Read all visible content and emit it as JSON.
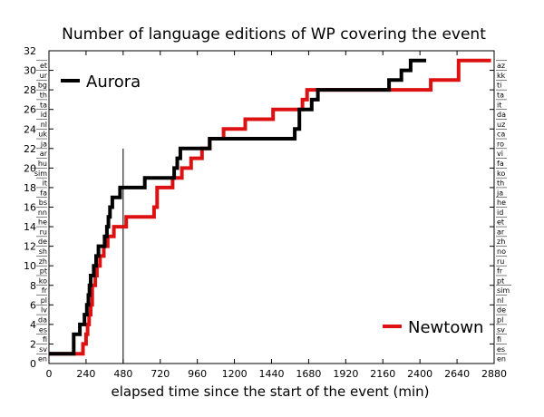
{
  "chart_data": {
    "type": "line",
    "title": "Number of language editions of WP covering the event",
    "xlabel": "elapsed time since the start of the event (min)",
    "ylabel": "",
    "xlim": [
      0,
      2880
    ],
    "ylim": [
      0,
      32
    ],
    "x_ticks": [
      "0",
      "240",
      "480",
      "720",
      "960",
      "1200",
      "1440",
      "1680",
      "1920",
      "2160",
      "2400",
      "2640",
      "2880"
    ],
    "y_ticks": [
      "0",
      "2",
      "4",
      "6",
      "8",
      "10",
      "12",
      "14",
      "16",
      "18",
      "20",
      "22",
      "24",
      "26",
      "28",
      "30",
      "32"
    ],
    "grid": false,
    "legend_placement": "top-left and bottom-right",
    "vertical_marker_x": 480,
    "vertical_marker_ymax": 22,
    "series": [
      {
        "name": "Aurora",
        "color": "#000000",
        "step_points": [
          [
            0,
            1
          ],
          [
            160,
            1
          ],
          [
            160,
            3
          ],
          [
            200,
            3
          ],
          [
            200,
            4
          ],
          [
            230,
            4
          ],
          [
            230,
            5
          ],
          [
            245,
            5
          ],
          [
            245,
            6
          ],
          [
            255,
            6
          ],
          [
            255,
            7
          ],
          [
            262,
            7
          ],
          [
            262,
            8
          ],
          [
            270,
            8
          ],
          [
            270,
            9
          ],
          [
            290,
            9
          ],
          [
            290,
            10
          ],
          [
            305,
            10
          ],
          [
            305,
            11
          ],
          [
            320,
            11
          ],
          [
            320,
            12
          ],
          [
            360,
            12
          ],
          [
            360,
            13
          ],
          [
            375,
            13
          ],
          [
            375,
            14
          ],
          [
            385,
            14
          ],
          [
            385,
            15
          ],
          [
            395,
            15
          ],
          [
            395,
            16
          ],
          [
            410,
            16
          ],
          [
            410,
            17
          ],
          [
            460,
            17
          ],
          [
            460,
            18
          ],
          [
            480,
            18
          ],
          [
            480,
            18
          ],
          [
            620,
            18
          ],
          [
            620,
            19
          ],
          [
            810,
            19
          ],
          [
            810,
            20
          ],
          [
            830,
            20
          ],
          [
            830,
            21
          ],
          [
            850,
            21
          ],
          [
            850,
            22
          ],
          [
            1040,
            22
          ],
          [
            1040,
            23
          ],
          [
            1590,
            23
          ],
          [
            1590,
            24
          ],
          [
            1620,
            24
          ],
          [
            1620,
            26
          ],
          [
            1700,
            26
          ],
          [
            1700,
            27
          ],
          [
            1740,
            27
          ],
          [
            1740,
            28
          ],
          [
            1750,
            28
          ],
          [
            2200,
            28
          ],
          [
            2200,
            29
          ],
          [
            2280,
            29
          ],
          [
            2280,
            30
          ],
          [
            2340,
            30
          ],
          [
            2340,
            31
          ],
          [
            2440,
            31
          ]
        ],
        "labels": [
          "en",
          "sv",
          "fi",
          "es",
          "da",
          "lv",
          "pl",
          "fr",
          "ko",
          "pt",
          "zh",
          "sh",
          "de",
          "ru",
          "he",
          "nn",
          "bs",
          "fa",
          "it",
          "sim",
          "hu",
          "ar",
          "ja",
          "uk",
          "nl",
          "id",
          "ta",
          "th",
          "bg",
          "ur",
          "et"
        ]
      },
      {
        "name": "Newtown",
        "color": "#dd1111",
        "step_points": [
          [
            0,
            1
          ],
          [
            220,
            1
          ],
          [
            220,
            2
          ],
          [
            240,
            2
          ],
          [
            240,
            3
          ],
          [
            250,
            3
          ],
          [
            250,
            4
          ],
          [
            260,
            4
          ],
          [
            260,
            5
          ],
          [
            270,
            5
          ],
          [
            270,
            6
          ],
          [
            280,
            6
          ],
          [
            280,
            8
          ],
          [
            300,
            8
          ],
          [
            300,
            9
          ],
          [
            310,
            9
          ],
          [
            310,
            10
          ],
          [
            330,
            10
          ],
          [
            330,
            11
          ],
          [
            355,
            11
          ],
          [
            355,
            12
          ],
          [
            380,
            12
          ],
          [
            380,
            13
          ],
          [
            420,
            13
          ],
          [
            420,
            14
          ],
          [
            480,
            14
          ],
          [
            480,
            14
          ],
          [
            500,
            14
          ],
          [
            500,
            15
          ],
          [
            680,
            15
          ],
          [
            680,
            16
          ],
          [
            700,
            16
          ],
          [
            700,
            18
          ],
          [
            800,
            18
          ],
          [
            800,
            19
          ],
          [
            860,
            19
          ],
          [
            860,
            20
          ],
          [
            920,
            20
          ],
          [
            920,
            21
          ],
          [
            990,
            21
          ],
          [
            990,
            22
          ],
          [
            1040,
            22
          ],
          [
            1040,
            23
          ],
          [
            1130,
            23
          ],
          [
            1130,
            24
          ],
          [
            1270,
            24
          ],
          [
            1270,
            25
          ],
          [
            1450,
            25
          ],
          [
            1450,
            26
          ],
          [
            1640,
            26
          ],
          [
            1640,
            27
          ],
          [
            1670,
            27
          ],
          [
            1670,
            28
          ],
          [
            2470,
            28
          ],
          [
            2470,
            29
          ],
          [
            2650,
            29
          ],
          [
            2650,
            31
          ],
          [
            2860,
            31
          ]
        ],
        "labels": [
          "en",
          "es",
          "fi",
          "sv",
          "pl",
          "de",
          "nl",
          "sim",
          "pt",
          "fr",
          "ru",
          "no",
          "zh",
          "ar",
          "et",
          "id",
          "he",
          "ja",
          "th",
          "ko",
          "fa",
          "vi",
          "ro",
          "ca",
          "uz",
          "da",
          "it",
          "ta",
          "ti",
          "kk",
          "az"
        ]
      }
    ]
  }
}
